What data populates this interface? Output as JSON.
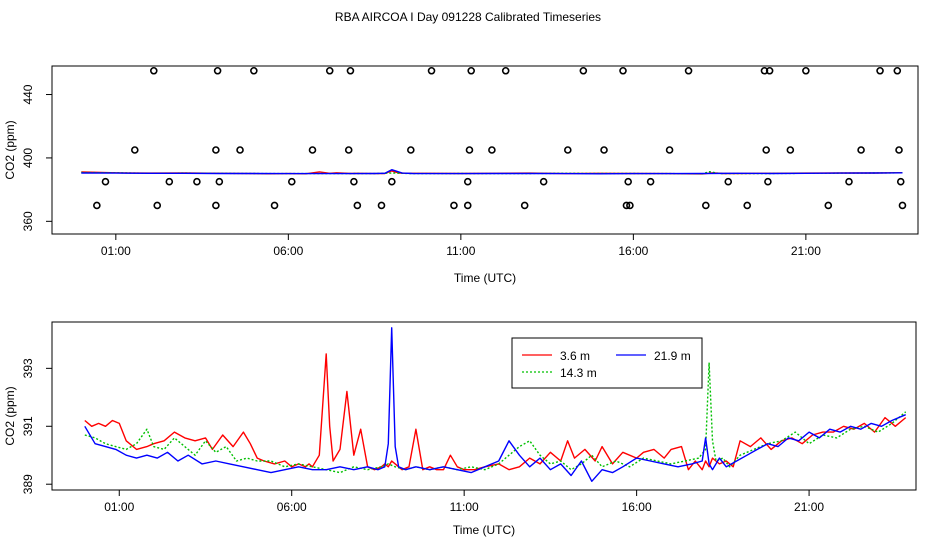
{
  "chart_data": [
    {
      "type": "scatter",
      "title": "RBA AIRCOA I  Day 091228  Calibrated Timeseries",
      "xlabel": "Time (UTC)",
      "ylabel": "CO2 (ppm)",
      "xlim": [
        -0.85,
        24.25
      ],
      "ylim": [
        352,
        458
      ],
      "x_ticks": [
        1,
        6,
        11,
        16,
        21
      ],
      "x_tick_labels": [
        "01:00",
        "06:00",
        "11:00",
        "16:00",
        "21:00"
      ],
      "y_ticks": [
        360,
        400,
        440
      ],
      "y_tick_labels": [
        "360",
        "400",
        "440"
      ],
      "grid": false,
      "calibration_points": {
        "marker": "open-circle",
        "x": [
          0.45,
          0.7,
          1.55,
          2.1,
          2.2,
          2.55,
          3.35,
          3.9,
          3.9,
          3.95,
          4.0,
          4.6,
          5.0,
          5.6,
          6.1,
          6.7,
          7.2,
          7.75,
          7.8,
          7.9,
          8.0,
          8.7,
          9.0,
          9.55,
          10.15,
          10.8,
          11.2,
          11.2,
          11.25,
          11.3,
          11.9,
          12.3,
          12.85,
          13.4,
          14.1,
          14.55,
          15.15,
          15.7,
          15.8,
          15.85,
          15.9,
          16.5,
          17.05,
          17.6,
          18.1,
          18.75,
          19.3,
          19.8,
          19.85,
          19.9,
          19.95,
          20.55,
          21.0,
          21.65,
          22.25,
          22.6,
          23.15,
          23.65,
          23.7,
          23.75,
          23.8
        ],
        "y": [
          370,
          385,
          405,
          455,
          370,
          385,
          385,
          370,
          405,
          455,
          385,
          405,
          455,
          370,
          385,
          405,
          455,
          405,
          455,
          385,
          370,
          370,
          385,
          405,
          455,
          370,
          385,
          370,
          405,
          455,
          405,
          455,
          370,
          385,
          405,
          455,
          405,
          455,
          370,
          385,
          370,
          385,
          405,
          455,
          370,
          385,
          370,
          455,
          405,
          385,
          455,
          405,
          455,
          370,
          385,
          405,
          455,
          455,
          405,
          385,
          370
        ]
      },
      "series": [
        {
          "name": "3.6 m",
          "color": "#ff0000",
          "dash": "",
          "x": [
            0,
            1,
            2,
            3,
            4,
            5,
            5.4,
            6,
            6.5,
            6.9,
            7.2,
            7.4,
            7.8,
            8,
            8.5,
            8.8,
            9,
            9.2,
            9.5,
            10,
            11,
            12,
            13,
            14,
            15,
            16,
            17,
            17.5,
            18,
            18.3,
            18.6,
            19,
            20,
            21,
            22,
            23,
            23.8
          ],
          "y": [
            391.1,
            390.6,
            390.4,
            390.5,
            390.3,
            390.1,
            390.0,
            390.1,
            390.0,
            391.2,
            390.3,
            390.6,
            390.2,
            390.3,
            390.1,
            390.2,
            391.8,
            390.5,
            390.3,
            390.3,
            390.2,
            390.3,
            390.4,
            390.1,
            390.3,
            390.2,
            390.1,
            390.0,
            389.9,
            390.6,
            390.2,
            390.2,
            390.3,
            390.4,
            390.5,
            390.5,
            390.7
          ]
        },
        {
          "name": "14.3 m",
          "color": "#00c000",
          "dash": "2,2",
          "x": [
            0,
            1,
            2,
            3,
            4,
            5,
            6,
            6.5,
            7,
            7.5,
            8,
            8.5,
            9,
            9.5,
            10,
            11,
            12,
            13,
            14,
            15,
            16,
            17,
            18,
            18.2,
            18.5,
            19,
            20,
            21,
            22,
            23,
            23.8
          ],
          "y": [
            390.8,
            390.6,
            390.3,
            390.4,
            390.3,
            390.2,
            390.1,
            390.1,
            390.2,
            390.1,
            390.2,
            390.1,
            390.5,
            390.2,
            390.1,
            390.2,
            390.1,
            390.2,
            390.3,
            390.2,
            390.2,
            390.1,
            390.0,
            391.3,
            390.2,
            390.1,
            390.2,
            390.3,
            390.4,
            390.5,
            390.6
          ]
        },
        {
          "name": "21.9 m",
          "color": "#0000ff",
          "dash": "",
          "x": [
            0,
            1,
            2,
            3,
            4,
            5,
            6,
            7,
            8,
            8.5,
            8.8,
            9,
            9.3,
            9.6,
            10,
            11,
            12,
            13,
            14,
            15,
            16,
            17,
            18,
            19,
            20,
            21,
            22,
            23,
            23.8
          ],
          "y": [
            390.5,
            390.4,
            390.3,
            390.3,
            390.2,
            390.2,
            390.1,
            390.1,
            390.1,
            390.2,
            390.3,
            392.6,
            390.4,
            390.2,
            390.1,
            390.1,
            390.2,
            390.2,
            390.1,
            390.0,
            390.1,
            390.1,
            390.2,
            390.3,
            390.2,
            390.3,
            390.4,
            390.5,
            390.6
          ]
        }
      ]
    },
    {
      "type": "line",
      "title": "",
      "xlabel": "Time (UTC)",
      "ylabel": "CO2 (ppm)",
      "xlim": [
        -0.95,
        24.1
      ],
      "ylim": [
        388.8,
        394.6
      ],
      "x_ticks": [
        1,
        6,
        11,
        16,
        21
      ],
      "x_tick_labels": [
        "01:00",
        "06:00",
        "11:00",
        "16:00",
        "21:00"
      ],
      "y_ticks": [
        389,
        391,
        393
      ],
      "y_tick_labels": [
        "389",
        "391",
        "393"
      ],
      "grid": false,
      "legend": {
        "position": "top-center",
        "entries": [
          "3.6 m",
          "14.3 m",
          "21.9 m"
        ]
      },
      "series": [
        {
          "name": "3.6 m",
          "color": "#ff0000",
          "dash": "",
          "x": [
            0,
            0.2,
            0.4,
            0.6,
            0.8,
            1.0,
            1.2,
            1.5,
            1.8,
            2.0,
            2.3,
            2.6,
            2.9,
            3.2,
            3.5,
            3.7,
            4.0,
            4.3,
            4.6,
            4.8,
            5.0,
            5.2,
            5.5,
            5.8,
            6.0,
            6.2,
            6.4,
            6.5,
            6.6,
            6.8,
            7.0,
            7.1,
            7.2,
            7.4,
            7.6,
            7.8,
            8.0,
            8.2,
            8.4,
            8.6,
            8.7,
            8.8,
            8.9,
            9.0,
            9.2,
            9.4,
            9.6,
            9.8,
            10.0,
            10.2,
            10.4,
            10.6,
            10.8,
            11.0,
            11.3,
            11.6,
            12.0,
            12.3,
            12.6,
            12.9,
            13.2,
            13.5,
            13.8,
            14.0,
            14.2,
            14.5,
            14.8,
            15.0,
            15.3,
            15.6,
            16.0,
            16.2,
            16.5,
            16.8,
            17.0,
            17.3,
            17.5,
            17.7,
            17.9,
            18.0,
            18.1,
            18.2,
            18.4,
            18.6,
            18.8,
            19.0,
            19.3,
            19.6,
            19.9,
            20.2,
            20.5,
            20.8,
            21.1,
            21.4,
            21.7,
            22.0,
            22.3,
            22.6,
            22.9,
            23.2,
            23.5,
            23.8
          ],
          "y": [
            391.2,
            391.0,
            391.1,
            391.0,
            391.2,
            391.1,
            390.5,
            390.2,
            390.3,
            390.4,
            390.5,
            390.8,
            390.6,
            390.5,
            390.6,
            390.2,
            390.7,
            390.3,
            390.8,
            390.4,
            389.9,
            389.8,
            389.7,
            389.8,
            389.6,
            389.7,
            389.6,
            389.7,
            389.6,
            390.0,
            393.5,
            391.0,
            389.8,
            390.2,
            392.2,
            390.0,
            390.9,
            389.6,
            389.5,
            389.6,
            389.7,
            389.6,
            389.8,
            389.7,
            389.5,
            389.6,
            390.9,
            389.5,
            389.6,
            389.5,
            389.5,
            390.0,
            389.6,
            389.5,
            389.5,
            389.6,
            389.7,
            389.5,
            389.6,
            389.9,
            389.7,
            390.1,
            389.8,
            390.5,
            389.9,
            390.2,
            389.8,
            390.3,
            389.7,
            390.1,
            389.9,
            390.1,
            390.2,
            389.9,
            390.2,
            390.3,
            389.5,
            389.8,
            389.5,
            389.8,
            389.6,
            389.9,
            389.7,
            389.8,
            389.6,
            390.5,
            390.3,
            390.6,
            390.2,
            390.5,
            390.6,
            390.4,
            390.7,
            390.8,
            390.8,
            391.0,
            390.9,
            391.1,
            390.8,
            391.3,
            391.0,
            391.3
          ]
        },
        {
          "name": "14.3 m",
          "color": "#00c000",
          "dash": "2,2",
          "x": [
            0,
            0.3,
            0.6,
            0.9,
            1.2,
            1.5,
            1.8,
            2.0,
            2.3,
            2.6,
            2.9,
            3.2,
            3.5,
            3.8,
            4.1,
            4.4,
            4.7,
            5.0,
            5.4,
            5.8,
            6.2,
            6.6,
            7.0,
            7.4,
            7.8,
            8.2,
            8.6,
            8.8,
            9.0,
            9.3,
            9.6,
            10.0,
            10.4,
            10.8,
            11.2,
            11.6,
            12.0,
            12.3,
            12.6,
            12.9,
            13.2,
            13.5,
            13.8,
            14.1,
            14.4,
            14.7,
            15.0,
            15.4,
            15.8,
            16.2,
            16.6,
            17.0,
            17.4,
            17.8,
            18.0,
            18.1,
            18.2,
            18.3,
            18.5,
            18.7,
            19.0,
            19.4,
            19.8,
            20.2,
            20.6,
            21.0,
            21.4,
            21.8,
            22.2,
            22.6,
            23.0,
            23.4,
            23.8
          ],
          "y": [
            390.7,
            390.6,
            390.4,
            390.3,
            390.2,
            390.4,
            390.9,
            390.3,
            390.2,
            390.6,
            390.3,
            390.0,
            390.5,
            390.1,
            390.3,
            389.8,
            389.9,
            389.8,
            389.8,
            389.6,
            389.7,
            389.6,
            389.5,
            389.4,
            389.6,
            389.5,
            389.6,
            389.7,
            389.6,
            389.5,
            389.6,
            389.5,
            389.6,
            389.5,
            389.6,
            389.5,
            389.7,
            390.0,
            390.3,
            390.5,
            390.0,
            389.7,
            389.8,
            389.5,
            389.7,
            390.0,
            389.6,
            389.8,
            389.6,
            389.9,
            389.8,
            389.7,
            389.8,
            389.9,
            390.2,
            393.2,
            390.5,
            389.8,
            389.9,
            389.6,
            390.0,
            390.2,
            390.4,
            390.5,
            390.8,
            390.4,
            390.7,
            390.6,
            390.9,
            391.0,
            390.8,
            391.1,
            391.5
          ]
        },
        {
          "name": "21.9 m",
          "color": "#0000ff",
          "dash": "",
          "x": [
            0,
            0.3,
            0.6,
            0.9,
            1.2,
            1.5,
            1.8,
            2.1,
            2.4,
            2.7,
            3.0,
            3.4,
            3.8,
            4.2,
            4.6,
            5.0,
            5.4,
            5.8,
            6.2,
            6.6,
            7.0,
            7.4,
            7.8,
            8.2,
            8.5,
            8.7,
            8.8,
            8.9,
            9.0,
            9.1,
            9.3,
            9.6,
            10.0,
            10.4,
            10.8,
            11.2,
            11.6,
            12.0,
            12.3,
            12.6,
            12.9,
            13.2,
            13.5,
            13.8,
            14.1,
            14.4,
            14.7,
            15.0,
            15.3,
            15.6,
            16.0,
            16.4,
            16.8,
            17.2,
            17.6,
            17.9,
            18.0,
            18.1,
            18.2,
            18.4,
            18.6,
            18.9,
            19.2,
            19.5,
            19.8,
            20.1,
            20.4,
            20.7,
            21.0,
            21.3,
            21.6,
            21.9,
            22.2,
            22.5,
            22.8,
            23.1,
            23.4,
            23.8
          ],
          "y": [
            391.0,
            390.4,
            390.3,
            390.2,
            390.0,
            389.9,
            390.0,
            389.9,
            390.1,
            389.8,
            390.0,
            389.7,
            389.8,
            389.7,
            389.6,
            389.5,
            389.4,
            389.5,
            389.6,
            389.5,
            389.5,
            389.6,
            389.5,
            389.6,
            389.5,
            389.6,
            390.4,
            394.4,
            390.3,
            389.6,
            389.5,
            389.6,
            389.5,
            389.6,
            389.5,
            389.4,
            389.6,
            389.8,
            390.5,
            390.0,
            389.6,
            389.9,
            389.5,
            389.7,
            389.3,
            389.8,
            389.1,
            389.5,
            389.4,
            389.6,
            389.9,
            389.8,
            389.7,
            389.6,
            389.7,
            389.8,
            390.6,
            389.7,
            389.5,
            389.9,
            389.6,
            389.8,
            390.0,
            390.2,
            390.4,
            390.3,
            390.6,
            390.5,
            390.8,
            390.6,
            390.9,
            390.8,
            391.0,
            390.9,
            391.1,
            391.0,
            391.2,
            391.4
          ]
        }
      ]
    }
  ]
}
